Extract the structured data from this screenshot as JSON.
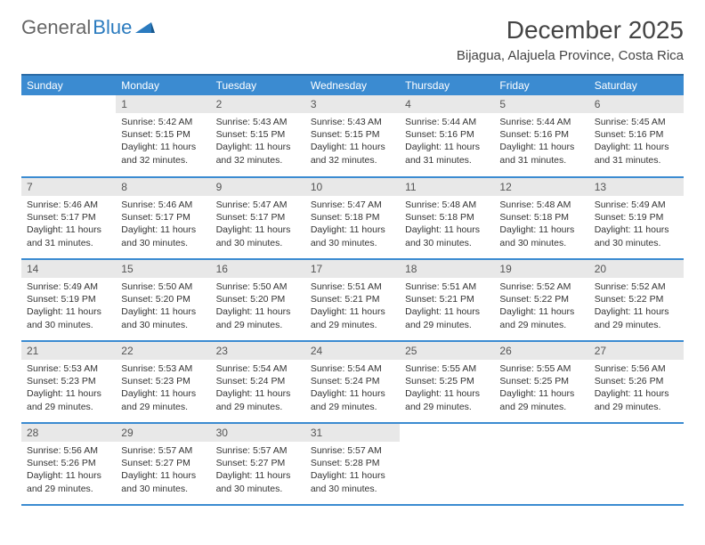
{
  "logo": {
    "part1": "General",
    "part2": "Blue"
  },
  "title": "December 2025",
  "location": "Bijagua, Alajuela Province, Costa Rica",
  "colors": {
    "header_bg": "#3b8bd1",
    "header_border": "#2b6ba5",
    "row_border": "#3b8bd1",
    "daynum_bg": "#e8e8e8",
    "text": "#333333",
    "logo_gray": "#666666",
    "logo_blue": "#2b7bbf"
  },
  "weekdays": [
    "Sunday",
    "Monday",
    "Tuesday",
    "Wednesday",
    "Thursday",
    "Friday",
    "Saturday"
  ],
  "start_offset": 1,
  "days": [
    {
      "n": 1,
      "sunrise": "5:42 AM",
      "sunset": "5:15 PM",
      "daylight": "11 hours and 32 minutes."
    },
    {
      "n": 2,
      "sunrise": "5:43 AM",
      "sunset": "5:15 PM",
      "daylight": "11 hours and 32 minutes."
    },
    {
      "n": 3,
      "sunrise": "5:43 AM",
      "sunset": "5:15 PM",
      "daylight": "11 hours and 32 minutes."
    },
    {
      "n": 4,
      "sunrise": "5:44 AM",
      "sunset": "5:16 PM",
      "daylight": "11 hours and 31 minutes."
    },
    {
      "n": 5,
      "sunrise": "5:44 AM",
      "sunset": "5:16 PM",
      "daylight": "11 hours and 31 minutes."
    },
    {
      "n": 6,
      "sunrise": "5:45 AM",
      "sunset": "5:16 PM",
      "daylight": "11 hours and 31 minutes."
    },
    {
      "n": 7,
      "sunrise": "5:46 AM",
      "sunset": "5:17 PM",
      "daylight": "11 hours and 31 minutes."
    },
    {
      "n": 8,
      "sunrise": "5:46 AM",
      "sunset": "5:17 PM",
      "daylight": "11 hours and 30 minutes."
    },
    {
      "n": 9,
      "sunrise": "5:47 AM",
      "sunset": "5:17 PM",
      "daylight": "11 hours and 30 minutes."
    },
    {
      "n": 10,
      "sunrise": "5:47 AM",
      "sunset": "5:18 PM",
      "daylight": "11 hours and 30 minutes."
    },
    {
      "n": 11,
      "sunrise": "5:48 AM",
      "sunset": "5:18 PM",
      "daylight": "11 hours and 30 minutes."
    },
    {
      "n": 12,
      "sunrise": "5:48 AM",
      "sunset": "5:18 PM",
      "daylight": "11 hours and 30 minutes."
    },
    {
      "n": 13,
      "sunrise": "5:49 AM",
      "sunset": "5:19 PM",
      "daylight": "11 hours and 30 minutes."
    },
    {
      "n": 14,
      "sunrise": "5:49 AM",
      "sunset": "5:19 PM",
      "daylight": "11 hours and 30 minutes."
    },
    {
      "n": 15,
      "sunrise": "5:50 AM",
      "sunset": "5:20 PM",
      "daylight": "11 hours and 30 minutes."
    },
    {
      "n": 16,
      "sunrise": "5:50 AM",
      "sunset": "5:20 PM",
      "daylight": "11 hours and 29 minutes."
    },
    {
      "n": 17,
      "sunrise": "5:51 AM",
      "sunset": "5:21 PM",
      "daylight": "11 hours and 29 minutes."
    },
    {
      "n": 18,
      "sunrise": "5:51 AM",
      "sunset": "5:21 PM",
      "daylight": "11 hours and 29 minutes."
    },
    {
      "n": 19,
      "sunrise": "5:52 AM",
      "sunset": "5:22 PM",
      "daylight": "11 hours and 29 minutes."
    },
    {
      "n": 20,
      "sunrise": "5:52 AM",
      "sunset": "5:22 PM",
      "daylight": "11 hours and 29 minutes."
    },
    {
      "n": 21,
      "sunrise": "5:53 AM",
      "sunset": "5:23 PM",
      "daylight": "11 hours and 29 minutes."
    },
    {
      "n": 22,
      "sunrise": "5:53 AM",
      "sunset": "5:23 PM",
      "daylight": "11 hours and 29 minutes."
    },
    {
      "n": 23,
      "sunrise": "5:54 AM",
      "sunset": "5:24 PM",
      "daylight": "11 hours and 29 minutes."
    },
    {
      "n": 24,
      "sunrise": "5:54 AM",
      "sunset": "5:24 PM",
      "daylight": "11 hours and 29 minutes."
    },
    {
      "n": 25,
      "sunrise": "5:55 AM",
      "sunset": "5:25 PM",
      "daylight": "11 hours and 29 minutes."
    },
    {
      "n": 26,
      "sunrise": "5:55 AM",
      "sunset": "5:25 PM",
      "daylight": "11 hours and 29 minutes."
    },
    {
      "n": 27,
      "sunrise": "5:56 AM",
      "sunset": "5:26 PM",
      "daylight": "11 hours and 29 minutes."
    },
    {
      "n": 28,
      "sunrise": "5:56 AM",
      "sunset": "5:26 PM",
      "daylight": "11 hours and 29 minutes."
    },
    {
      "n": 29,
      "sunrise": "5:57 AM",
      "sunset": "5:27 PM",
      "daylight": "11 hours and 30 minutes."
    },
    {
      "n": 30,
      "sunrise": "5:57 AM",
      "sunset": "5:27 PM",
      "daylight": "11 hours and 30 minutes."
    },
    {
      "n": 31,
      "sunrise": "5:57 AM",
      "sunset": "5:28 PM",
      "daylight": "11 hours and 30 minutes."
    }
  ],
  "labels": {
    "sunrise": "Sunrise:",
    "sunset": "Sunset:",
    "daylight": "Daylight:"
  }
}
